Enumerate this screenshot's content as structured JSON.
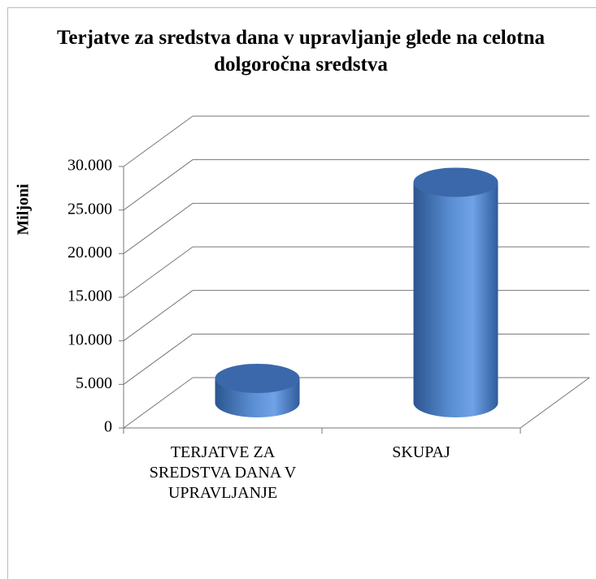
{
  "chart_data": {
    "type": "bar",
    "title": "Terjatve za sredstva dana v upravljanje glede na celotna dolgoročna sredstva",
    "y_label": "Miljoni",
    "categories": [
      "TERJATVE ZA SREDSTVA DANA V UPRAVLJANJE",
      "SKUPAJ"
    ],
    "values": [
      2800,
      25300
    ],
    "color": "#4a7fc1",
    "ylim": [
      0,
      30000
    ],
    "yticks": [
      0,
      {
        "value": 5000,
        "label": "5.000"
      },
      {
        "value": 10000,
        "label": "10.000"
      },
      {
        "value": 15000,
        "label": "15.000"
      },
      {
        "value": 20000,
        "label": "20.000"
      },
      {
        "value": 25000,
        "label": "25.000"
      },
      {
        "value": 30000,
        "label": "30.000"
      }
    ],
    "grid": true
  }
}
